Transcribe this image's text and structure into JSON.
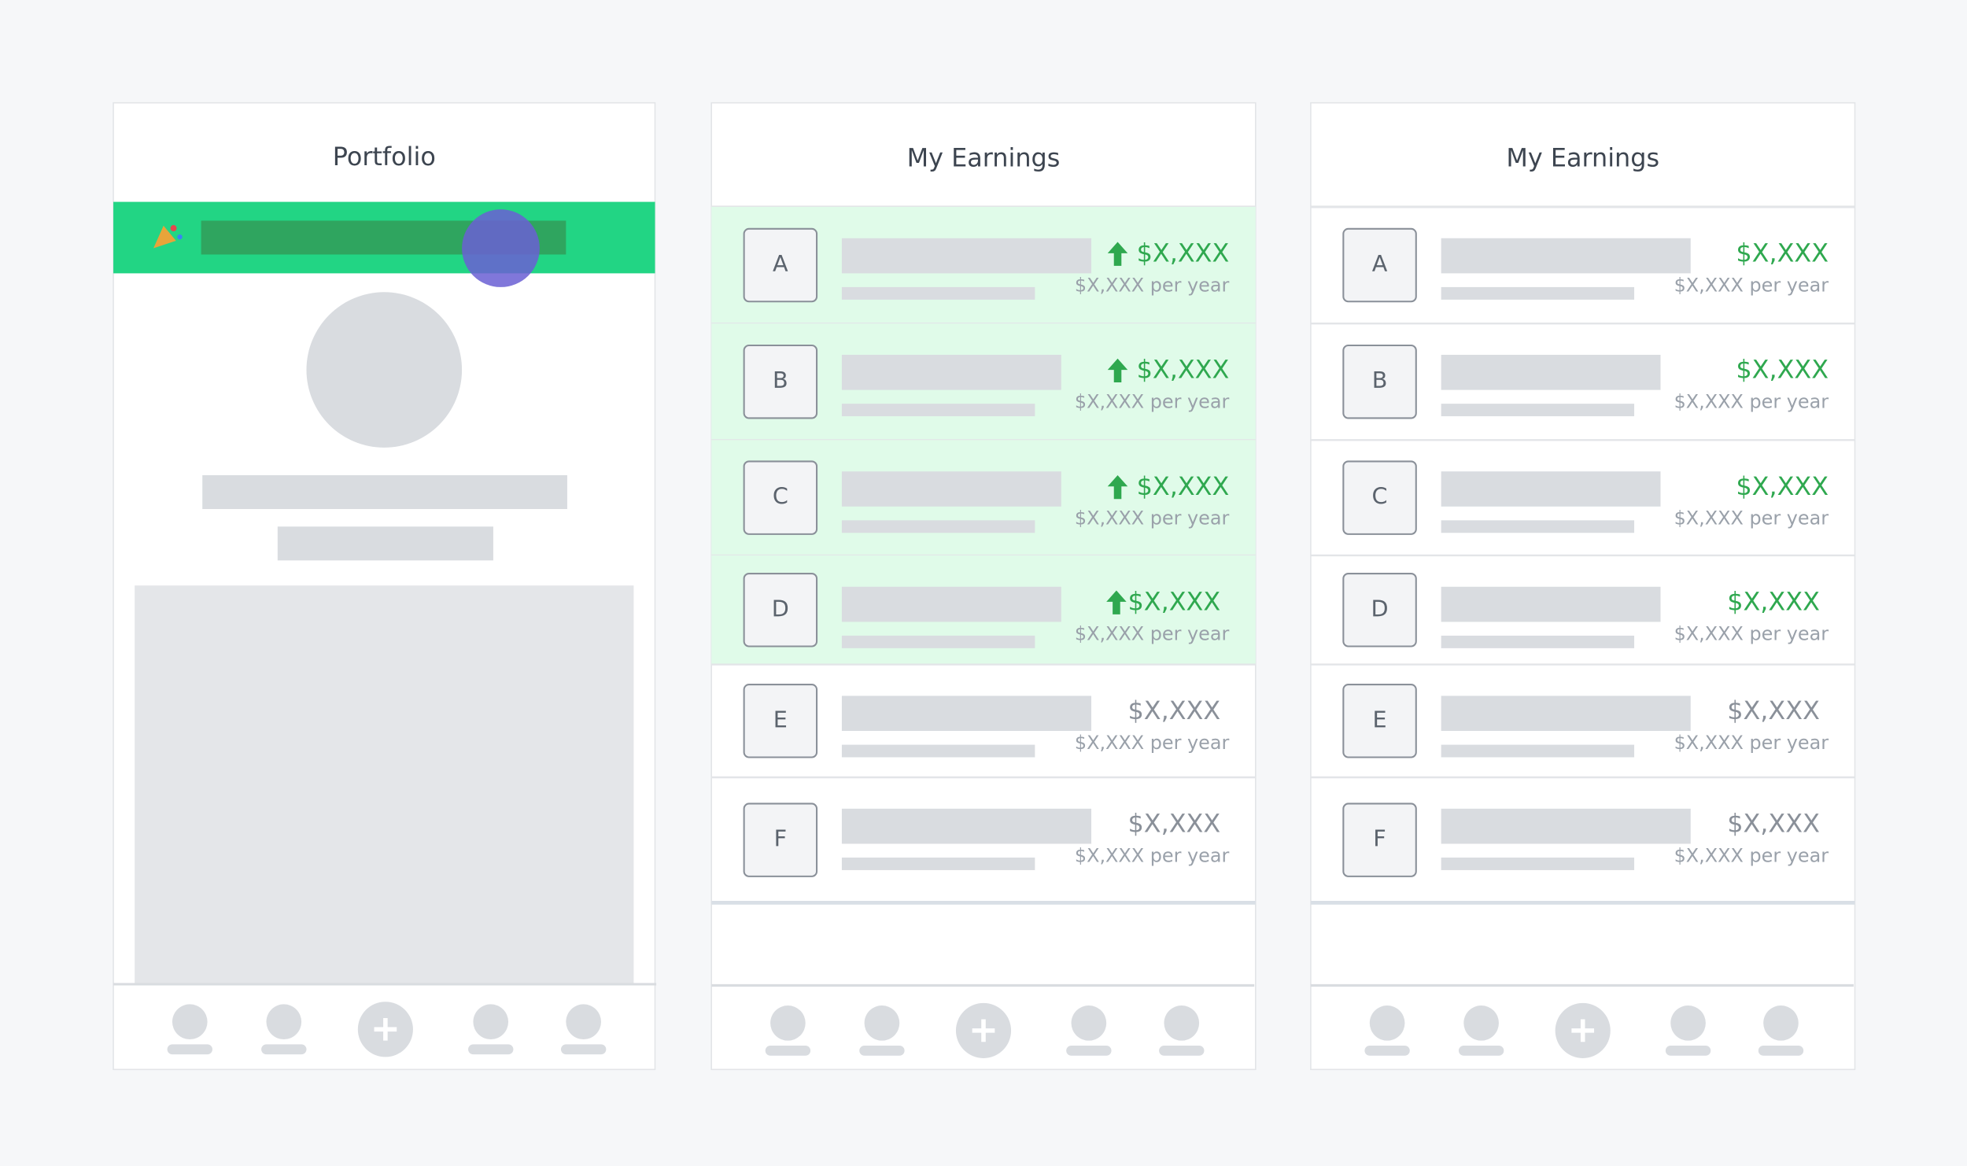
{
  "screens": [
    {
      "title": "Portfolio"
    },
    {
      "title": "My Earnings",
      "rows": [
        {
          "label": "A",
          "amount": "$X,XXX",
          "per_year": "$X,XXX per year",
          "status": "up"
        },
        {
          "label": "B",
          "amount": "$X,XXX",
          "per_year": "$X,XXX per year",
          "status": "up"
        },
        {
          "label": "C",
          "amount": "$X,XXX",
          "per_year": "$X,XXX per year",
          "status": "up"
        },
        {
          "label": "D",
          "amount": "$X,XXX",
          "per_year": "$X,XXX per year",
          "status": "up"
        },
        {
          "label": "E",
          "amount": "$X,XXX",
          "per_year": "$X,XXX per year",
          "status": "neutral"
        },
        {
          "label": "F",
          "amount": "$X,XXX",
          "per_year": "$X,XXX per year",
          "status": "neutral"
        }
      ]
    },
    {
      "title": "My Earnings",
      "rows": [
        {
          "label": "A",
          "amount": "$X,XXX",
          "per_year": "$X,XXX per year",
          "status": "positive"
        },
        {
          "label": "B",
          "amount": "$X,XXX",
          "per_year": "$X,XXX per year",
          "status": "positive"
        },
        {
          "label": "C",
          "amount": "$X,XXX",
          "per_year": "$X,XXX per year",
          "status": "positive"
        },
        {
          "label": "D",
          "amount": "$X,XXX",
          "per_year": "$X,XXX per year",
          "status": "positive"
        },
        {
          "label": "E",
          "amount": "$X,XXX",
          "per_year": "$X,XXX per year",
          "status": "neutral"
        },
        {
          "label": "F",
          "amount": "$X,XXX",
          "per_year": "$X,XXX per year",
          "status": "neutral"
        }
      ]
    }
  ]
}
